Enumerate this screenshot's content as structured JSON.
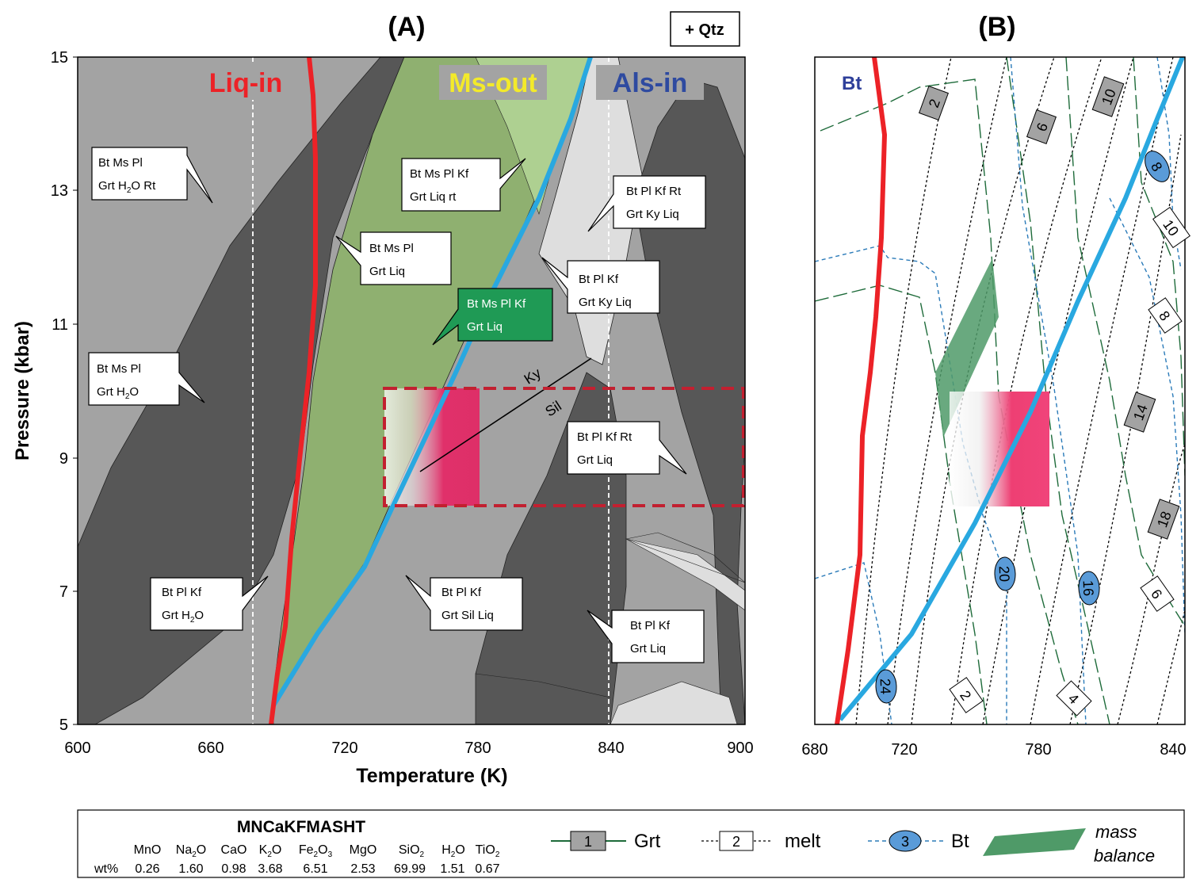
{
  "panelA": {
    "title": "(A)",
    "qtz": "+ Qtz",
    "xlabel": "Temperature (K)",
    "ylabel": "Pressure (kbar)",
    "xticks": [
      "600",
      "660",
      "720",
      "780",
      "840",
      "900"
    ],
    "yticks": [
      "5",
      "7",
      "9",
      "11",
      "13",
      "15"
    ],
    "liq_in": "Liq-in",
    "ms_out": "Ms-out",
    "als_in": "Als-in",
    "ky": "Ky",
    "sil": "Sil",
    "fields": [
      {
        "l1": "Bt Ms Pl",
        "l2a": "Grt H",
        "l2sub": "2",
        "l2b": "O Rt"
      },
      {
        "l1": "Bt Ms Pl Kf",
        "l2a": "Grt Liq rt",
        "l2sub": "",
        "l2b": ""
      },
      {
        "l1": "Bt Pl Kf Rt",
        "l2a": "Grt Ky Liq",
        "l2sub": "",
        "l2b": ""
      },
      {
        "l1": "Bt Ms Pl",
        "l2a": "Grt Liq",
        "l2sub": "",
        "l2b": ""
      },
      {
        "l1": "Bt Pl Kf",
        "l2a": "Grt Ky Liq",
        "l2sub": "",
        "l2b": ""
      },
      {
        "l1": "Bt Ms Pl Kf",
        "l2a": "Grt Liq",
        "l2sub": "",
        "l2b": ""
      },
      {
        "l1": "Bt Ms Pl",
        "l2a": "Grt H",
        "l2sub": "2",
        "l2b": "O"
      },
      {
        "l1": "Bt Pl Kf Rt",
        "l2a": "Grt Liq",
        "l2sub": "",
        "l2b": ""
      },
      {
        "l1": "Bt Pl Kf",
        "l2a": "Grt H",
        "l2sub": "2",
        "l2b": "O"
      },
      {
        "l1": "Bt Pl Kf",
        "l2a": "Grt Sil Liq",
        "l2sub": "",
        "l2b": ""
      },
      {
        "l1": "Bt Pl Kf",
        "l2a": "Grt Liq",
        "l2sub": "",
        "l2b": ""
      }
    ]
  },
  "panelB": {
    "title": "(B)",
    "bt": "Bt",
    "xticks": [
      "680",
      "720",
      "780",
      "840"
    ],
    "grt_labels": [
      "2",
      "6",
      "10",
      "14",
      "18"
    ],
    "melt_labels": [
      "10",
      "8",
      "6",
      "2",
      "4"
    ],
    "bt_labels": [
      "8",
      "20",
      "16",
      "24"
    ]
  },
  "legend": {
    "system": "MNCaKFMASHT",
    "row_label": "wt%",
    "oxides": [
      {
        "a": "MnO",
        "sub": "",
        "b": "",
        "val": "0.26"
      },
      {
        "a": "Na",
        "sub": "2",
        "b": "O",
        "val": "1.60"
      },
      {
        "a": "CaO",
        "sub": "",
        "b": "",
        "val": "0.98"
      },
      {
        "a": "K",
        "sub": "2",
        "b": "O",
        "val": "3.68"
      },
      {
        "a": "Fe",
        "sub": "2",
        "b": "O3",
        "val": "6.51"
      },
      {
        "a": "MgO",
        "sub": "",
        "b": "",
        "val": "2.53"
      },
      {
        "a": "SiO",
        "sub": "2",
        "b": "",
        "val": "69.99"
      },
      {
        "a": "H",
        "sub": "2",
        "b": "O",
        "val": "1.51"
      },
      {
        "a": "TiO",
        "sub": "2",
        "b": "",
        "val": "0.67"
      }
    ],
    "grt_num": "1",
    "grt": "Grt",
    "melt_num": "2",
    "melt": "melt",
    "bt_num": "3",
    "bt": "Bt",
    "mass1": "mass",
    "mass2": "balance"
  },
  "colors": {
    "dark": "#575757",
    "mid": "#a3a3a3",
    "light": "#dedede",
    "green": "#8fb070",
    "lightgreen": "#aed091",
    "red": "#ec2227",
    "blue": "#29a8e0",
    "grt": "#1e6b3a",
    "bt": "#2b7bb9",
    "mass": "#4f9a68",
    "msbox": "#1f9a55"
  }
}
